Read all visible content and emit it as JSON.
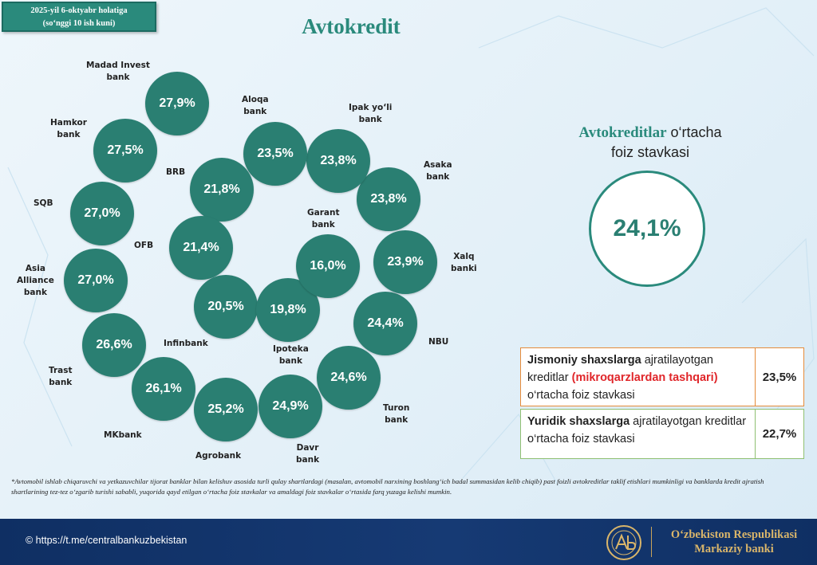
{
  "date_box": {
    "line1": "2025-yil 6-oktyabr holatiga",
    "line2": "(so‘nggi 10 ish kuni)"
  },
  "title": "Avtokredit",
  "banks": [
    {
      "name": "Madad Invest\nbank",
      "rate": "27,9%"
    },
    {
      "name": "Hamkor\nbank",
      "rate": "27,5%"
    },
    {
      "name": "SQB",
      "rate": "27,0%"
    },
    {
      "name": "Asia\nAlliance\nbank",
      "rate": "27,0%"
    },
    {
      "name": "Trast\nbank",
      "rate": "26,6%"
    },
    {
      "name": "MKbank",
      "rate": "26,1%"
    },
    {
      "name": "Agrobank",
      "rate": "25,2%"
    },
    {
      "name": "Davr\nbank",
      "rate": "24,9%"
    },
    {
      "name": "Turon\nbank",
      "rate": "24,6%"
    },
    {
      "name": "NBU",
      "rate": "24,4%"
    },
    {
      "name": "Xalq\nbanki",
      "rate": "23,9%"
    },
    {
      "name": "Asaka\nbank",
      "rate": "23,8%"
    },
    {
      "name": "Ipak yo‘li\nbank",
      "rate": "23,8%"
    },
    {
      "name": "Aloqa\nbank",
      "rate": "23,5%"
    },
    {
      "name": "BRB",
      "rate": "21,8%"
    },
    {
      "name": "OFB",
      "rate": "21,4%"
    },
    {
      "name": "Infinbank",
      "rate": "20,5%"
    },
    {
      "name": "Ipoteka\nbank",
      "rate": "19,8%"
    },
    {
      "name": "Garant\nbank",
      "rate": "16,0%"
    }
  ],
  "average": {
    "title_bold": "Avtokreditlar",
    "title_rest": " o‘rtacha",
    "title_line2": "foiz stavkasi",
    "value": "24,1%"
  },
  "individuals": {
    "bold": "Jismoniy shaxslarga",
    "text1": " ajratilayotgan kreditlar ",
    "red": "(mikroqarzlardan tashqari)",
    "text2": " o‘rtacha foiz stavkasi",
    "value": "23,5%"
  },
  "legal": {
    "bold": "Yuridik shaxslarga",
    "text1": " ajratilayotgan kreditlar o‘rtacha foiz stavkasi",
    "value": "22,7%"
  },
  "footnote": "*Avtomobil ishlab chiqaruvchi va yetkazuvchilar tijorat banklar bilan kelishuv asosida turli qulay shartlardagi (masalan, avtomobil narxining boshlang‘ich badal summasidan kelib chiqib) past foizli avtokreditlar taklif etishlari mumkinligi va banklarda kredit ajratish shartlarining tez-tez o‘zgarib turishi sababli, yuqorida qayd etilgan o‘rtacha foiz stavkalar va amaldagi foiz stavkalar o‘rtasida farq yuzaga kelishi mumkin.",
  "footer": {
    "link": "© https://t.me/centralbankuzbekistan",
    "bank_line1": "O‘zbekiston Respublikasi",
    "bank_line2": "Markaziy banki"
  },
  "colors": {
    "accent": "#2a8a7c",
    "bubble": "#2a7f72",
    "footer": "#163a74",
    "gold": "#d9b56a",
    "red": "#e0262a"
  }
}
